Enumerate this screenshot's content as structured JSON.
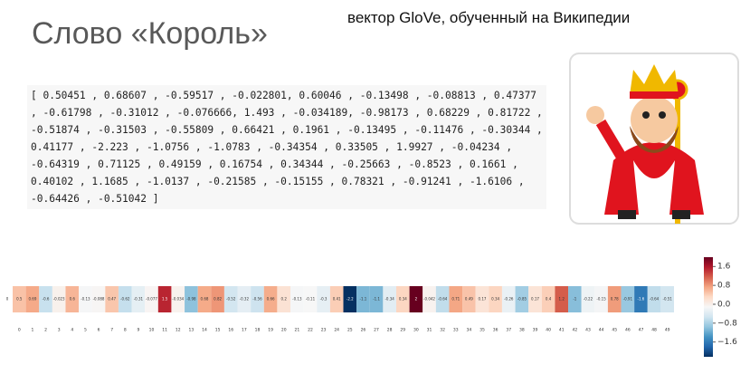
{
  "title": "Слово «Король»",
  "subtitle": "вектор GloVe, обученный на Википедии",
  "vector_text": [
    "[ 0.50451 , 0.68607 , -0.59517 , -0.022801, 0.60046 , -0.13498 , -0.08813 , 0.47377",
    ", -0.61798 , -0.31012 , -0.076666, 1.493 , -0.034189, -0.98173 , 0.68229 , 0.81722 ,",
    "-0.51874 , -0.31503 , -0.55809 , 0.66421 , 0.1961 , -0.13495 , -0.11476 , -0.30344 ,",
    "0.41177 , -2.223 , -1.0756 , -1.0783 , -0.34354 , 0.33505 , 1.9927 , -0.04234 ,",
    "-0.64319 , 0.71125 , 0.49159 , 0.16754 , 0.34344 , -0.25663 , -0.8523 , 0.1661 ,",
    "0.40102 , 1.1685 , -1.0137 , -0.21585 , -0.15155 , 0.78321 , -0.91241 , -1.6106 ,",
    "-0.64426 , -0.51042 ]"
  ],
  "chart_data": {
    "type": "heatmap",
    "colormap": "RdBu_r",
    "row_label": "0",
    "categories": [
      "0",
      "1",
      "2",
      "3",
      "4",
      "5",
      "6",
      "7",
      "8",
      "9",
      "10",
      "11",
      "12",
      "13",
      "14",
      "15",
      "16",
      "17",
      "18",
      "19",
      "20",
      "21",
      "22",
      "23",
      "24",
      "25",
      "26",
      "27",
      "28",
      "29",
      "30",
      "31",
      "32",
      "33",
      "34",
      "35",
      "36",
      "37",
      "38",
      "39",
      "40",
      "41",
      "42",
      "43",
      "44",
      "45",
      "46",
      "47",
      "48",
      "49"
    ],
    "values": [
      0.50451,
      0.68607,
      -0.59517,
      -0.022801,
      0.60046,
      -0.13498,
      -0.08813,
      0.47377,
      -0.61798,
      -0.31012,
      -0.076666,
      1.493,
      -0.034189,
      -0.98173,
      0.68229,
      0.81722,
      -0.51874,
      -0.31503,
      -0.55809,
      0.66421,
      0.1961,
      -0.13495,
      -0.11476,
      -0.30344,
      0.41177,
      -2.223,
      -1.0756,
      -1.0783,
      -0.34354,
      0.33505,
      1.9927,
      -0.04234,
      -0.64319,
      0.71125,
      0.49159,
      0.16754,
      0.34344,
      -0.25663,
      -0.8523,
      0.1661,
      0.40102,
      1.1685,
      -1.0137,
      -0.21585,
      -0.15155,
      0.78321,
      -0.91241,
      -1.6106,
      -0.64426,
      -0.51042
    ],
    "value_labels": [
      "0.5",
      "0.69",
      "-0.6",
      "-0.023",
      "0.6",
      "-0.13",
      "-0.088",
      "0.47",
      "-0.62",
      "-0.31",
      "-0.077",
      "1.5",
      "-0.034",
      "-0.98",
      "0.68",
      "0.82",
      "-0.52",
      "-0.32",
      "-0.56",
      "0.66",
      "0.2",
      "-0.13",
      "-0.11",
      "-0.3",
      "0.41",
      "-2.2",
      "-1.1",
      "-1.1",
      "-0.34",
      "0.34",
      "2",
      "-0.042",
      "-0.64",
      "0.71",
      "0.49",
      "0.17",
      "0.34",
      "-0.26",
      "-0.85",
      "0.17",
      "0.4",
      "1.2",
      "-1",
      "-0.22",
      "-0.15",
      "0.78",
      "-0.91",
      "-1.6",
      "-0.64",
      "-0.51"
    ],
    "colorbar_lim": [
      -2.223,
      1.9927
    ],
    "colorbar_ticks": [
      1.6,
      0.8,
      {
        "value": 0,
        "label": "0.0"
      },
      {
        "value": -0.8,
        "label": "−0.8"
      },
      {
        "value": -1.6,
        "label": "−1.6"
      }
    ]
  }
}
